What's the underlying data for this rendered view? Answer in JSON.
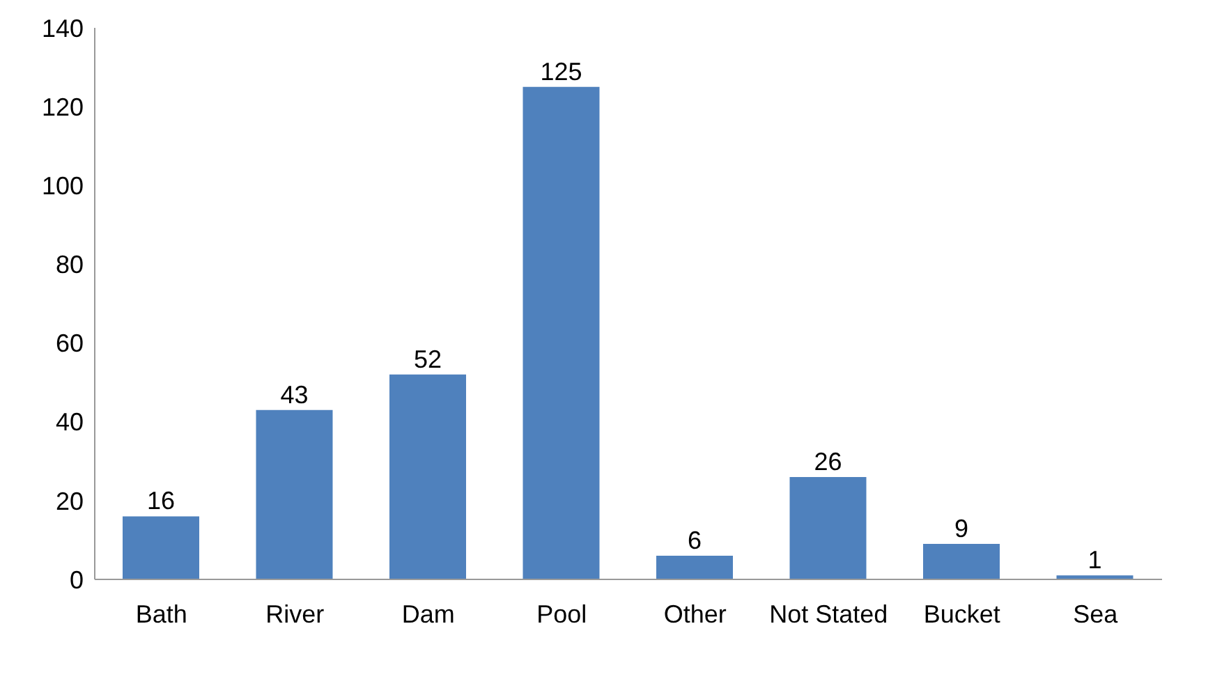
{
  "chart_data": {
    "type": "bar",
    "categories": [
      "Bath",
      "River",
      "Dam",
      "Pool",
      "Other",
      "Not Stated",
      "Bucket",
      "Sea"
    ],
    "values": [
      16,
      43,
      52,
      125,
      6,
      26,
      9,
      1
    ],
    "color": "#4f81bd",
    "ylim": [
      0,
      140
    ],
    "yticks": [
      0,
      20,
      40,
      60,
      80,
      100,
      120,
      140
    ],
    "data_labels": true,
    "grid": false,
    "legend": false
  }
}
